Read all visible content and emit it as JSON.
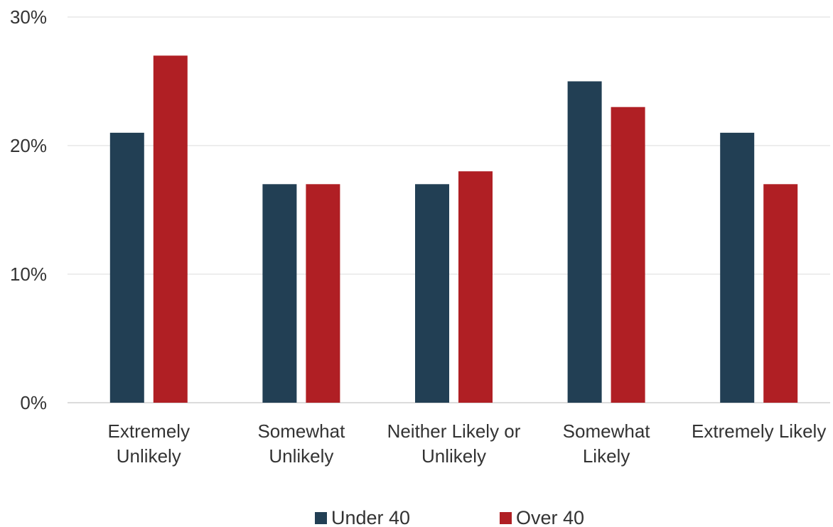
{
  "chart_data": {
    "type": "bar",
    "categories": [
      [
        "Extremely",
        "Unlikely"
      ],
      [
        "Somewhat",
        "Unlikely"
      ],
      [
        "Neither Likely or",
        "Unlikely"
      ],
      [
        "Somewhat",
        "Likely"
      ],
      [
        "Extremely Likely"
      ]
    ],
    "series": [
      {
        "name": "Under 40",
        "color": "#223f54",
        "values": [
          21,
          17,
          17,
          25,
          21
        ]
      },
      {
        "name": "Over 40",
        "color": "#b01f24",
        "values": [
          27,
          17,
          18,
          23,
          17
        ]
      }
    ],
    "yticks": [
      0,
      10,
      20,
      30
    ],
    "ytick_suffix": "%",
    "ylim": [
      0,
      30
    ],
    "grid": true,
    "legend_position": "bottom",
    "title": "",
    "xlabel": "",
    "ylabel": ""
  }
}
